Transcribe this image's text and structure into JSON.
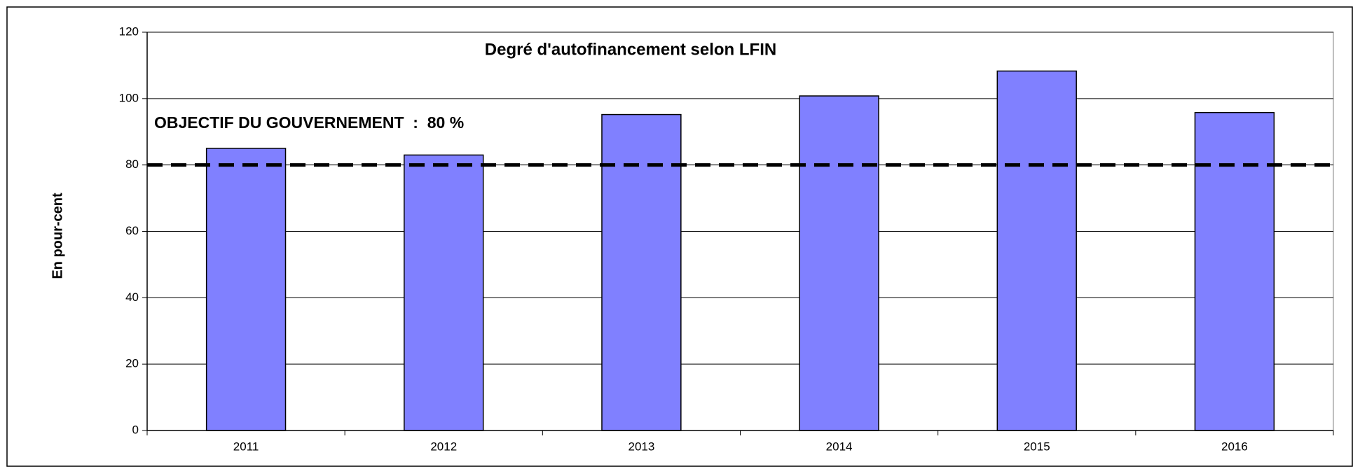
{
  "chart_data": {
    "type": "bar",
    "title": "Degré d'autofinancement selon LFIN",
    "y_label": "En pour-cent",
    "annotation": "OBJECTIF DU GOUVERNEMENT  :  80 %",
    "categories": [
      "2011",
      "2012",
      "2013",
      "2014",
      "2015",
      "2016"
    ],
    "values": [
      85,
      83,
      95.2,
      100.8,
      108.3,
      95.8
    ],
    "color": "#8080ff",
    "target": 80,
    "ylim": [
      0,
      120
    ],
    "yticks": [
      0,
      20,
      40,
      60,
      80,
      100,
      120
    ],
    "grid": true
  }
}
